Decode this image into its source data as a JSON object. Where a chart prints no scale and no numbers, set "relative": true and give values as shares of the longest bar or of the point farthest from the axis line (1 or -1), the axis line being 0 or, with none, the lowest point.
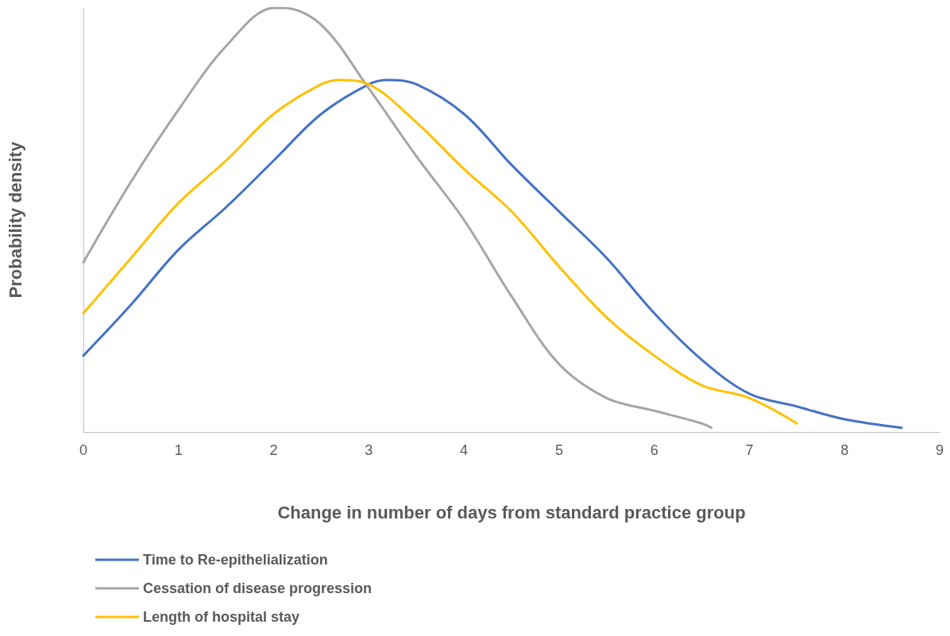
{
  "chart_data": {
    "type": "line",
    "relative": true,
    "xlabel": "Change in number of days from standard practice group",
    "ylabel": "Probability density",
    "xlim": [
      0,
      9
    ],
    "xticks": [
      0,
      1,
      2,
      3,
      4,
      5,
      6,
      7,
      8,
      9
    ],
    "grid": false,
    "legend": "bottom left",
    "marker": "none",
    "line_style": "solid",
    "series": [
      {
        "name": "Time to Re-epithelialization",
        "color": "#4472c4",
        "x": [
          0,
          0.5,
          1,
          1.5,
          2,
          2.5,
          3,
          3.2,
          3.5,
          4,
          4.5,
          5,
          5.5,
          6,
          6.5,
          7,
          7.5,
          8,
          8.6
        ],
        "values": [
          0.18,
          0.3,
          0.43,
          0.53,
          0.64,
          0.75,
          0.82,
          0.83,
          0.82,
          0.75,
          0.63,
          0.52,
          0.41,
          0.28,
          0.17,
          0.09,
          0.06,
          0.03,
          0.01
        ]
      },
      {
        "name": "Cessation of disease progression",
        "color": "#a5a5a5",
        "x": [
          0,
          0.5,
          1,
          1.5,
          2,
          2.1,
          2.5,
          3,
          3.5,
          4,
          4.5,
          5,
          5.5,
          6,
          6.5,
          6.6
        ],
        "values": [
          0.4,
          0.59,
          0.76,
          0.91,
          1,
          1,
          0.96,
          0.81,
          0.65,
          0.5,
          0.32,
          0.16,
          0.08,
          0.05,
          0.02,
          0.01
        ]
      },
      {
        "name": "Length of hospital stay",
        "color": "#ffc000",
        "x": [
          0,
          0.5,
          1,
          1.5,
          2,
          2.5,
          2.7,
          3,
          3.5,
          4,
          4.5,
          5,
          5.5,
          6,
          6.5,
          7,
          7.5
        ],
        "values": [
          0.28,
          0.41,
          0.54,
          0.64,
          0.75,
          0.82,
          0.83,
          0.82,
          0.73,
          0.62,
          0.52,
          0.39,
          0.27,
          0.18,
          0.11,
          0.08,
          0.02
        ]
      }
    ]
  }
}
